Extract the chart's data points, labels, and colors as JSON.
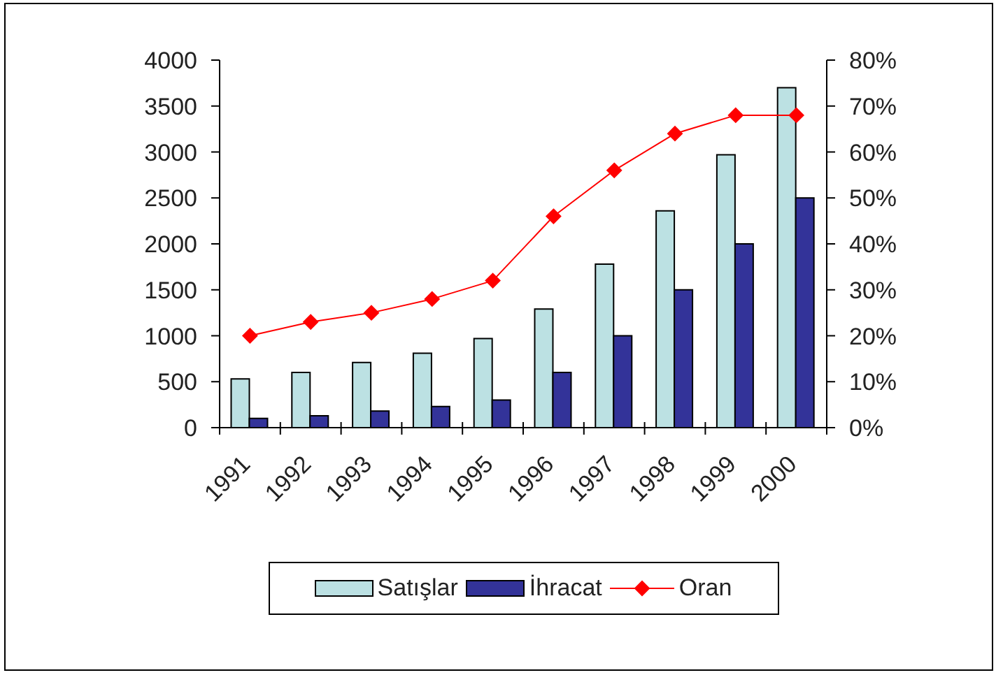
{
  "chart_data": {
    "type": "bar",
    "categories": [
      "1991",
      "1992",
      "1993",
      "1994",
      "1995",
      "1996",
      "1997",
      "1998",
      "1999",
      "2000"
    ],
    "series": [
      {
        "name": "Satışlar",
        "color": "#bce1e3",
        "values": [
          530,
          600,
          710,
          810,
          970,
          1290,
          1780,
          2360,
          2970,
          3700
        ]
      },
      {
        "name": "İhracat",
        "color": "#333399",
        "values": [
          100,
          130,
          180,
          230,
          300,
          600,
          1000,
          1500,
          2000,
          2500
        ]
      },
      {
        "name": "Oran",
        "type": "line",
        "axis": "y2",
        "color": "#ff0000",
        "values": [
          20,
          23,
          25,
          28,
          32,
          46,
          56,
          64,
          68,
          68
        ]
      }
    ],
    "ylim": [
      0,
      4000
    ],
    "yticks": [
      0,
      500,
      1000,
      1500,
      2000,
      2500,
      3000,
      3500,
      4000
    ],
    "y2lim": [
      0,
      80
    ],
    "y2ticks": [
      {
        "value": 0,
        "label": "0%"
      },
      {
        "value": 10,
        "label": "10%"
      },
      {
        "value": 20,
        "label": "20%"
      },
      {
        "value": 30,
        "label": "30%"
      },
      {
        "value": 40,
        "label": "40%"
      },
      {
        "value": 50,
        "label": "50%"
      },
      {
        "value": 60,
        "label": "60%"
      },
      {
        "value": 70,
        "label": "70%"
      },
      {
        "value": 80,
        "label": "80%"
      }
    ],
    "marker": "diamond",
    "legend": "bottom"
  }
}
